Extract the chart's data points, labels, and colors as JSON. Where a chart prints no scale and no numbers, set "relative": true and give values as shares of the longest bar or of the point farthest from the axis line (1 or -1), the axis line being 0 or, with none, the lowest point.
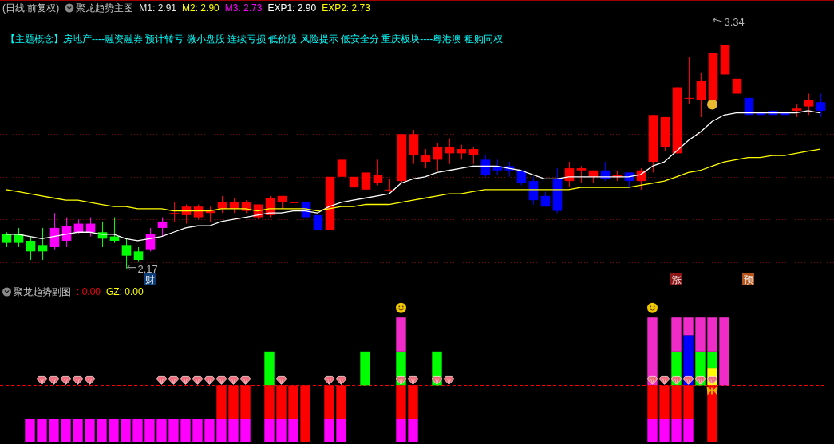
{
  "chart_data": [
    {
      "type": "candlestick",
      "title": "(日线.前复权)",
      "legend_title": "聚龙趋势主图",
      "subtitle": "【主题概念】房地产----融资融券 预计转亏 微小盘股 连续亏损 低价股 风险提示 低安全分 重庆板块----粤港澳 租购同权",
      "categories": [
        null,
        null,
        null,
        null,
        null,
        null,
        null,
        null,
        null,
        null,
        null,
        null,
        "财",
        null,
        null,
        null,
        null,
        null,
        null,
        null,
        null,
        null,
        null,
        null,
        null,
        null,
        null,
        null,
        null,
        null,
        null,
        null,
        null,
        null,
        null,
        null,
        null,
        null,
        null,
        null,
        null,
        null,
        null,
        null,
        null,
        null,
        null,
        null,
        null,
        null,
        null,
        null,
        null,
        null,
        null,
        null,
        "涨",
        null,
        null,
        null,
        null,
        null,
        "预",
        null,
        null,
        null,
        null,
        null,
        null
      ],
      "ohlc": [
        [
          2.33,
          2.34,
          2.27,
          2.29
        ],
        [
          2.33,
          2.36,
          2.27,
          2.29
        ],
        [
          2.3,
          2.32,
          2.21,
          2.25
        ],
        [
          2.28,
          2.36,
          2.21,
          2.25
        ],
        [
          2.27,
          2.43,
          2.26,
          2.36
        ],
        [
          2.3,
          2.41,
          2.27,
          2.37
        ],
        [
          2.34,
          2.4,
          2.33,
          2.38
        ],
        [
          2.34,
          2.41,
          2.32,
          2.38
        ],
        [
          2.34,
          2.39,
          2.27,
          2.31
        ],
        [
          2.32,
          2.41,
          2.29,
          2.3
        ],
        [
          2.28,
          2.31,
          2.17,
          2.23
        ],
        [
          2.25,
          2.27,
          2.2,
          2.21
        ],
        [
          2.26,
          2.36,
          2.25,
          2.33
        ],
        [
          2.36,
          2.41,
          2.32,
          2.39
        ],
        [
          2.43,
          2.48,
          2.39,
          2.43
        ],
        [
          2.42,
          2.47,
          2.38,
          2.46
        ],
        [
          2.41,
          2.47,
          2.4,
          2.46
        ],
        [
          2.43,
          2.46,
          2.39,
          2.44
        ],
        [
          2.45,
          2.51,
          2.43,
          2.48
        ],
        [
          2.45,
          2.5,
          2.43,
          2.48
        ],
        [
          2.44,
          2.49,
          2.43,
          2.48
        ],
        [
          2.41,
          2.47,
          2.4,
          2.47
        ],
        [
          2.42,
          2.51,
          2.41,
          2.5
        ],
        [
          2.48,
          2.51,
          2.45,
          2.51
        ],
        [
          2.48,
          2.52,
          2.45,
          2.48
        ],
        [
          2.48,
          2.5,
          2.41,
          2.41
        ],
        [
          2.42,
          2.42,
          2.34,
          2.35
        ],
        [
          2.35,
          2.6,
          2.34,
          2.6
        ],
        [
          2.6,
          2.76,
          2.58,
          2.68
        ],
        [
          2.55,
          2.64,
          2.52,
          2.6
        ],
        [
          2.54,
          2.63,
          2.52,
          2.62
        ],
        [
          2.57,
          2.68,
          2.56,
          2.61
        ],
        [
          2.54,
          2.59,
          2.53,
          2.54
        ],
        [
          2.58,
          2.8,
          2.57,
          2.8
        ],
        [
          2.7,
          2.82,
          2.66,
          2.8
        ],
        [
          2.67,
          2.73,
          2.64,
          2.7
        ],
        [
          2.68,
          2.76,
          2.63,
          2.74
        ],
        [
          2.71,
          2.78,
          2.66,
          2.74
        ],
        [
          2.71,
          2.75,
          2.68,
          2.73
        ],
        [
          2.7,
          2.74,
          2.66,
          2.73
        ],
        [
          2.68,
          2.7,
          2.6,
          2.61
        ],
        [
          2.65,
          2.68,
          2.61,
          2.63
        ],
        [
          2.65,
          2.67,
          2.6,
          2.63
        ],
        [
          2.63,
          2.63,
          2.56,
          2.57
        ],
        [
          2.58,
          2.6,
          2.47,
          2.49
        ],
        [
          2.51,
          2.53,
          2.46,
          2.46
        ],
        [
          2.59,
          2.64,
          2.43,
          2.44
        ],
        [
          2.58,
          2.67,
          2.55,
          2.64
        ],
        [
          2.63,
          2.65,
          2.57,
          2.64
        ],
        [
          2.6,
          2.63,
          2.57,
          2.63
        ],
        [
          2.63,
          2.67,
          2.58,
          2.59
        ],
        [
          2.6,
          2.63,
          2.58,
          2.61
        ],
        [
          2.62,
          2.62,
          2.55,
          2.58
        ],
        [
          2.58,
          2.64,
          2.54,
          2.63
        ],
        [
          2.67,
          2.89,
          2.62,
          2.89
        ],
        [
          2.74,
          2.88,
          2.72,
          2.88
        ],
        [
          2.71,
          3.02,
          2.71,
          3.02
        ],
        [
          2.97,
          3.16,
          2.94,
          2.97
        ],
        [
          2.96,
          3.09,
          2.88,
          3.05
        ],
        [
          2.96,
          3.34,
          2.96,
          3.18
        ],
        [
          3.08,
          3.23,
          3.05,
          3.22
        ],
        [
          2.99,
          3.08,
          2.97,
          3.06
        ],
        [
          2.97,
          3.0,
          2.8,
          2.89
        ],
        [
          2.9,
          2.93,
          2.85,
          2.89
        ],
        [
          2.91,
          2.92,
          2.85,
          2.89
        ],
        [
          2.9,
          2.9,
          2.86,
          2.89
        ],
        [
          2.91,
          2.94,
          2.88,
          2.92
        ],
        [
          2.93,
          2.99,
          2.89,
          2.96
        ],
        [
          2.95,
          2.99,
          2.88,
          2.91
        ]
      ],
      "colors": [
        "#00ff00",
        "#00ff00",
        "#00ff00",
        "#00ff00",
        "#ff00ff",
        "#ff00ff",
        "#ff00ff",
        "#ff00ff",
        "#00ff00",
        "#00ff00",
        "#00ff00",
        "#00ff00",
        "#ff00ff",
        "#ff00ff",
        "#ff0000",
        "#ff0000",
        "#ff0000",
        "#ff0000",
        "#ff0000",
        "#ff0000",
        "#ff0000",
        "#ff0000",
        "#ff0000",
        "#ff0000",
        "#ff0000",
        "#0000ff",
        "#0000ff",
        "#ff0000",
        "#ff0000",
        "#ff0000",
        "#ff0000",
        "#ff0000",
        "#ff0000",
        "#ff0000",
        "#ff0000",
        "#ff0000",
        "#ff0000",
        "#ff0000",
        "#ff0000",
        "#ff0000",
        "#0000ff",
        "#0000ff",
        "#0000ff",
        "#0000ff",
        "#0000ff",
        "#0000ff",
        "#0000ff",
        "#ff0000",
        "#ff0000",
        "#ff0000",
        "#0000ff",
        "#ff0000",
        "#0000ff",
        "#ff0000",
        "#ff0000",
        "#ff0000",
        "#ff0000",
        "#ff0000",
        "#ff0000",
        "#ff0000",
        "#ff0000",
        "#ff0000",
        "#0000ff",
        "#0000ff",
        "#0000ff",
        "#0000ff",
        "#ff0000",
        "#ff0000",
        "#0000ff"
      ],
      "value_labels": [
        null,
        null,
        null,
        null,
        null,
        null,
        null,
        null,
        null,
        null,
        "2.17",
        null,
        null,
        null,
        null,
        null,
        null,
        null,
        null,
        null,
        null,
        null,
        null,
        null,
        null,
        null,
        null,
        null,
        null,
        null,
        null,
        null,
        null,
        null,
        null,
        null,
        null,
        null,
        null,
        null,
        null,
        null,
        null,
        null,
        null,
        null,
        null,
        null,
        null,
        null,
        null,
        null,
        null,
        null,
        null,
        null,
        null,
        null,
        null,
        "3.34",
        null,
        null,
        null,
        null,
        null,
        null,
        null,
        null,
        null
      ],
      "series": [
        {
          "type": "line",
          "color": "#ffffff",
          "values": [
            2.33,
            2.33,
            2.32,
            2.31,
            2.32,
            2.33,
            2.34,
            2.34,
            2.33,
            2.33,
            2.31,
            2.3,
            2.31,
            2.32,
            2.34,
            2.36,
            2.37,
            2.37,
            2.39,
            2.4,
            2.41,
            2.42,
            2.43,
            2.43,
            2.44,
            2.44,
            2.43,
            2.46,
            2.48,
            2.49,
            2.5,
            2.51,
            2.52,
            2.57,
            2.59,
            2.6,
            2.62,
            2.63,
            2.64,
            2.65,
            2.65,
            2.65,
            2.64,
            2.63,
            2.61,
            2.59,
            2.59,
            2.6,
            2.6,
            2.6,
            2.6,
            2.6,
            2.6,
            2.61,
            2.65,
            2.67,
            2.72,
            2.77,
            2.81,
            2.86,
            2.89,
            2.9,
            2.9,
            2.9,
            2.9,
            2.9,
            2.9,
            2.91,
            2.9
          ]
        },
        {
          "type": "line",
          "color": "#ffff00",
          "values": [
            2.54,
            2.53,
            2.52,
            2.51,
            2.5,
            2.49,
            2.49,
            2.48,
            2.47,
            2.46,
            2.46,
            2.45,
            2.45,
            2.45,
            2.44,
            2.44,
            2.44,
            2.44,
            2.45,
            2.45,
            2.45,
            2.44,
            2.45,
            2.45,
            2.45,
            2.45,
            2.44,
            2.45,
            2.46,
            2.46,
            2.47,
            2.47,
            2.47,
            2.48,
            2.49,
            2.5,
            2.51,
            2.52,
            2.52,
            2.53,
            2.54,
            2.54,
            2.54,
            2.54,
            2.54,
            2.54,
            2.54,
            2.54,
            2.55,
            2.55,
            2.55,
            2.55,
            2.55,
            2.56,
            2.57,
            2.58,
            2.6,
            2.62,
            2.63,
            2.65,
            2.67,
            2.68,
            2.69,
            2.69,
            2.7,
            2.7,
            2.71,
            2.72,
            2.73
          ]
        },
        {
          "type": "scatter",
          "marker": "circle",
          "color": "#e8b830",
          "values": [
            null,
            null,
            null,
            null,
            null,
            null,
            null,
            null,
            null,
            null,
            null,
            null,
            null,
            null,
            null,
            null,
            null,
            null,
            null,
            null,
            null,
            null,
            null,
            null,
            null,
            null,
            null,
            null,
            null,
            null,
            null,
            null,
            null,
            null,
            null,
            null,
            null,
            null,
            null,
            null,
            null,
            null,
            null,
            null,
            null,
            null,
            null,
            null,
            null,
            null,
            null,
            null,
            null,
            null,
            null,
            null,
            null,
            null,
            null,
            2.94,
            null,
            null,
            null,
            null,
            null,
            null,
            null,
            null,
            null
          ]
        }
      ],
      "yticks": [
        {
          "value": 2.2,
          "label": null
        },
        {
          "value": 2.4,
          "label": null
        },
        {
          "value": 2.6,
          "label": null
        },
        {
          "value": 2.8,
          "label": null
        },
        {
          "value": 3.0,
          "label": null
        },
        {
          "value": 3.2,
          "label": null
        }
      ],
      "grid": "y",
      "tick_labels": "x",
      "annotations": [
        "M1: 2.91",
        "M2: 2.90",
        "M3: 2.73",
        "EXP1: 2.90",
        "EXP2: 2.73"
      ]
    },
    {
      "type": "bar",
      "title": "聚龙趋势副图",
      "relative": true,
      "stacked": true,
      "categories": [
        null,
        null,
        null,
        null,
        null,
        null,
        null,
        null,
        null,
        null,
        null,
        null,
        null,
        null,
        null,
        null,
        null,
        null,
        null,
        null,
        null,
        null,
        null,
        null,
        null,
        null,
        null,
        null,
        null,
        null,
        null,
        null,
        null,
        null,
        null,
        null,
        null,
        null,
        null,
        null,
        null,
        null,
        null,
        null,
        null,
        null,
        null,
        null,
        null,
        null,
        null,
        null,
        null,
        null,
        null,
        null,
        null,
        null,
        null,
        null,
        null,
        null,
        null,
        null,
        null,
        null,
        null,
        null,
        null
      ],
      "series": [
        {
          "color": "#ffff00",
          "values": [
            null,
            null,
            null,
            null,
            null,
            null,
            null,
            null,
            null,
            null,
            null,
            null,
            null,
            null,
            null,
            null,
            null,
            null,
            null,
            null,
            null,
            null,
            null,
            null,
            null,
            null,
            null,
            null,
            null,
            null,
            null,
            null,
            null,
            null,
            null,
            null,
            null,
            null,
            null,
            null,
            null,
            null,
            null,
            null,
            null,
            null,
            null,
            null,
            null,
            null,
            null,
            null,
            null,
            null,
            null,
            null,
            null,
            null,
            null,
            0.25,
            null,
            null,
            null,
            null,
            null,
            null,
            null,
            null,
            null
          ]
        },
        {
          "color": "#0000ff",
          "values": [
            null,
            null,
            null,
            null,
            null,
            null,
            null,
            null,
            null,
            null,
            null,
            null,
            null,
            null,
            null,
            null,
            null,
            null,
            null,
            null,
            null,
            null,
            null,
            null,
            null,
            null,
            null,
            null,
            null,
            null,
            null,
            null,
            null,
            null,
            null,
            null,
            null,
            null,
            null,
            null,
            null,
            null,
            null,
            null,
            null,
            null,
            null,
            null,
            null,
            null,
            null,
            null,
            null,
            null,
            null,
            null,
            null,
            0.74,
            null,
            null,
            null,
            null,
            null,
            null,
            null,
            null,
            null,
            null,
            null
          ]
        },
        {
          "color": "#00ff00",
          "values": [
            null,
            null,
            null,
            null,
            null,
            null,
            null,
            null,
            null,
            null,
            null,
            null,
            null,
            null,
            null,
            null,
            null,
            null,
            null,
            null,
            null,
            null,
            0.5,
            null,
            null,
            null,
            null,
            null,
            null,
            null,
            0.5,
            null,
            null,
            0.5,
            null,
            null,
            0.5,
            null,
            null,
            null,
            null,
            null,
            null,
            null,
            null,
            null,
            null,
            null,
            null,
            null,
            null,
            null,
            null,
            null,
            null,
            null,
            0.5,
            null,
            0.5,
            0.25,
            null,
            null,
            null,
            null,
            null,
            null,
            null,
            null,
            null
          ]
        },
        {
          "color": "#f02cc8",
          "values": [
            null,
            null,
            null,
            null,
            null,
            null,
            null,
            null,
            null,
            null,
            null,
            null,
            null,
            null,
            null,
            null,
            null,
            null,
            null,
            null,
            null,
            null,
            null,
            null,
            null,
            null,
            null,
            null,
            null,
            null,
            null,
            null,
            null,
            0.5,
            null,
            null,
            null,
            null,
            null,
            null,
            null,
            null,
            null,
            null,
            null,
            null,
            null,
            null,
            null,
            null,
            null,
            null,
            null,
            null,
            1,
            null,
            0.5,
            0.26,
            0.5,
            0.5,
            1,
            null,
            null,
            null,
            null,
            null,
            null,
            null,
            null
          ]
        }
      ],
      "annotations": [
        ": 0.00",
        "GZ: 0.00"
      ]
    },
    {
      "type": "bar",
      "relative": true,
      "stacked": true,
      "categories": [
        null,
        null,
        null,
        null,
        null,
        null,
        null,
        null,
        null,
        null,
        null,
        null,
        null,
        null,
        null,
        null,
        null,
        null,
        null,
        null,
        null,
        null,
        null,
        null,
        null,
        null,
        null,
        null,
        null,
        null,
        null,
        null,
        null,
        null,
        null,
        null,
        null,
        null,
        null,
        null,
        null,
        null,
        null,
        null,
        null,
        null,
        null,
        null,
        null,
        null,
        null,
        null,
        null,
        null,
        null,
        null,
        null,
        null,
        null,
        null,
        null,
        null,
        null,
        null,
        null,
        null,
        null,
        null,
        null
      ],
      "series": [
        {
          "color": "#ff00ff",
          "values": [
            null,
            null,
            0.4,
            0.4,
            0.4,
            0.4,
            0.4,
            0.4,
            0.4,
            0.4,
            0.4,
            0.4,
            0.4,
            0.4,
            0.4,
            0.4,
            0.4,
            0.4,
            0.4,
            0.4,
            0.4,
            null,
            0.4,
            0.4,
            0.4,
            null,
            null,
            0.4,
            0.4,
            null,
            null,
            null,
            null,
            0.4,
            0.4,
            null,
            null,
            null,
            null,
            null,
            null,
            null,
            null,
            null,
            null,
            null,
            null,
            null,
            null,
            null,
            null,
            null,
            null,
            null,
            0.4,
            0.4,
            0.4,
            0.4,
            null,
            null,
            null,
            null,
            null,
            null,
            null,
            null,
            null,
            null,
            null
          ]
        },
        {
          "color": "#ff0000",
          "values": [
            null,
            null,
            null,
            null,
            null,
            null,
            null,
            null,
            null,
            null,
            null,
            null,
            null,
            null,
            null,
            null,
            null,
            null,
            0.6,
            0.6,
            0.6,
            null,
            0.6,
            0.6,
            0.6,
            1,
            null,
            0.6,
            0.6,
            null,
            null,
            null,
            null,
            0.6,
            0.6,
            null,
            null,
            null,
            null,
            null,
            null,
            null,
            null,
            null,
            null,
            null,
            null,
            null,
            null,
            null,
            null,
            null,
            null,
            null,
            0.6,
            0.6,
            0.6,
            0.6,
            null,
            1,
            null,
            null,
            null,
            null,
            null,
            null,
            null,
            null,
            null
          ]
        }
      ]
    }
  ]
}
